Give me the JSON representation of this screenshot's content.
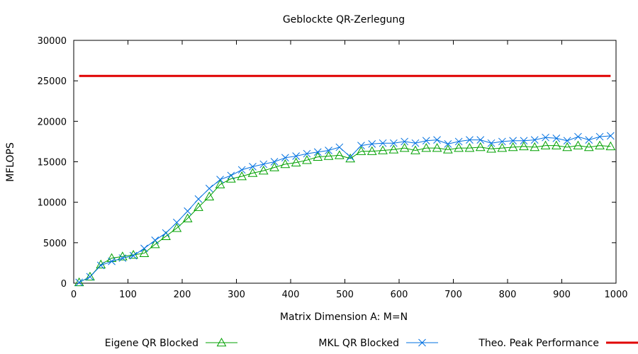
{
  "chart_data": {
    "type": "line",
    "title": "Geblockte QR-Zerlegung",
    "xlabel": "Matrix Dimension A: M=N",
    "ylabel": "MFLOPS",
    "xlim": [
      0,
      1000
    ],
    "ylim": [
      0,
      30000
    ],
    "xticks": [
      0,
      100,
      200,
      300,
      400,
      500,
      600,
      700,
      800,
      900,
      1000
    ],
    "yticks": [
      0,
      5000,
      10000,
      15000,
      20000,
      25000,
      30000
    ],
    "grid": false,
    "legend_position": "bottom",
    "x": [
      10,
      30,
      50,
      70,
      90,
      110,
      130,
      150,
      170,
      190,
      210,
      230,
      250,
      270,
      290,
      310,
      330,
      350,
      370,
      390,
      410,
      430,
      450,
      470,
      490,
      510,
      530,
      550,
      570,
      590,
      610,
      630,
      650,
      670,
      690,
      710,
      730,
      750,
      770,
      790,
      810,
      830,
      850,
      870,
      890,
      910,
      930,
      950,
      970,
      990
    ],
    "series": [
      {
        "name": "Eigene QR Blocked",
        "color": "#00a000",
        "marker": "triangle",
        "values": [
          100,
          800,
          2300,
          3100,
          3300,
          3500,
          3700,
          4800,
          5800,
          6800,
          8000,
          9400,
          10700,
          12200,
          12900,
          13200,
          13600,
          13900,
          14300,
          14700,
          14900,
          15200,
          15600,
          15700,
          15800,
          15400,
          16300,
          16300,
          16400,
          16500,
          16700,
          16400,
          16700,
          16700,
          16500,
          16700,
          16700,
          16800,
          16600,
          16700,
          16800,
          16900,
          16800,
          17000,
          17000,
          16800,
          17000,
          16800,
          17000,
          16900
        ]
      },
      {
        "name": "MKL QR Blocked",
        "color": "#0070e0",
        "marker": "cross",
        "values": [
          100,
          800,
          2200,
          2700,
          3100,
          3400,
          4300,
          5300,
          6200,
          7500,
          8900,
          10400,
          11700,
          12800,
          13300,
          14000,
          14400,
          14700,
          15000,
          15500,
          15700,
          16000,
          16200,
          16400,
          16800,
          15600,
          17000,
          17200,
          17300,
          17300,
          17500,
          17300,
          17600,
          17700,
          17200,
          17500,
          17700,
          17700,
          17300,
          17500,
          17600,
          17600,
          17700,
          18000,
          17900,
          17600,
          18100,
          17700,
          18100,
          18200
        ]
      },
      {
        "name": "Theo. Peak Performance",
        "color": "#e00000",
        "marker": "none",
        "values": [
          25600,
          25600,
          25600,
          25600,
          25600,
          25600,
          25600,
          25600,
          25600,
          25600,
          25600,
          25600,
          25600,
          25600,
          25600,
          25600,
          25600,
          25600,
          25600,
          25600,
          25600,
          25600,
          25600,
          25600,
          25600,
          25600,
          25600,
          25600,
          25600,
          25600,
          25600,
          25600,
          25600,
          25600,
          25600,
          25600,
          25600,
          25600,
          25600,
          25600,
          25600,
          25600,
          25600,
          25600,
          25600,
          25600,
          25600,
          25600,
          25600,
          25600
        ]
      }
    ]
  }
}
